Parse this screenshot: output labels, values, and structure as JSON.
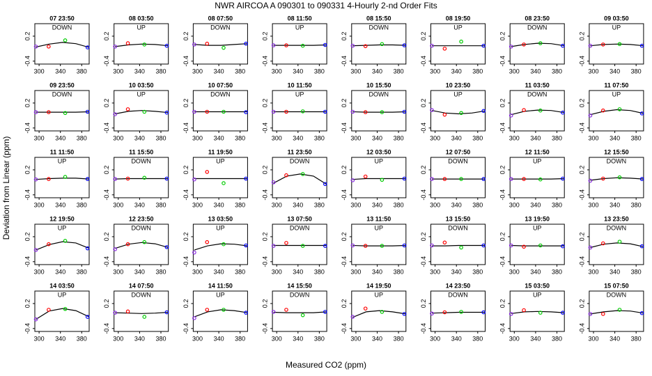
{
  "title": "NWR   AIRCOA A   090301 to 090331   4-Hourly 2-nd Order Fits",
  "xlabel": "Measured CO2 (ppm)",
  "ylabel": "Deviation from Linear (ppm)",
  "shared": {
    "x": [
      294,
      318,
      349,
      391
    ],
    "fit_x": [
      294,
      319,
      344,
      369,
      394
    ],
    "colors": [
      "#8a2be2",
      "#ff0000",
      "#00cc00",
      "#0000ff"
    ],
    "fit_color": "#000000",
    "xlim": [
      292,
      394
    ],
    "ylim": [
      -0.47,
      0.5
    ],
    "xticks": [
      300,
      340,
      380
    ],
    "yticks": [
      -0.4,
      0.2
    ]
  },
  "chart_data": [
    {
      "type": "scatter",
      "title": "07 23:50",
      "subtitle": "DOWN",
      "values": [
        -0.05,
        -0.05,
        0.1,
        -0.07
      ],
      "fit": [
        -0.06,
        0.01,
        0.05,
        0.02,
        -0.07
      ]
    },
    {
      "type": "scatter",
      "title": "08 03:50",
      "subtitle": "UP",
      "values": [
        -0.05,
        0.03,
        0,
        -0.03
      ],
      "fit": [
        -0.05,
        -0.01,
        0.01,
        0,
        -0.03
      ]
    },
    {
      "type": "scatter",
      "title": "08 07:50",
      "subtitle": "DOWN",
      "values": [
        0,
        0.02,
        -0.08,
        0.02
      ],
      "fit": [
        0,
        -0.02,
        -0.02,
        0,
        0.02
      ]
    },
    {
      "type": "scatter",
      "title": "08 11:50",
      "subtitle": "UP",
      "values": [
        -0.02,
        -0.02,
        -0.03,
        -0.01
      ],
      "fit": [
        -0.02,
        -0.02,
        -0.02,
        -0.02,
        -0.01
      ]
    },
    {
      "type": "scatter",
      "title": "08 15:50",
      "subtitle": "DOWN",
      "values": [
        -0.03,
        -0.04,
        0.01,
        -0.02
      ],
      "fit": [
        -0.03,
        -0.02,
        -0.01,
        -0.01,
        -0.02
      ]
    },
    {
      "type": "scatter",
      "title": "08 19:50",
      "subtitle": "UP",
      "values": [
        -0.03,
        -0.1,
        0.07,
        -0.03
      ],
      "fit": [
        -0.03,
        -0.03,
        -0.03,
        -0.03,
        -0.03
      ]
    },
    {
      "type": "scatter",
      "title": "08 23:50",
      "subtitle": "DOWN",
      "values": [
        -0.05,
        0,
        0.03,
        -0.03
      ],
      "fit": [
        -0.05,
        0,
        0.03,
        0.02,
        -0.03
      ]
    },
    {
      "type": "scatter",
      "title": "09 03:50",
      "subtitle": "UP",
      "values": [
        -0.03,
        0,
        0.01,
        -0.03
      ],
      "fit": [
        -0.03,
        0,
        0.01,
        0,
        -0.03
      ]
    },
    {
      "type": "scatter",
      "title": "09 23:50",
      "subtitle": "DOWN",
      "values": [
        -0.02,
        -0.02,
        -0.04,
        -0.01
      ],
      "fit": [
        -0.02,
        -0.02,
        -0.02,
        -0.02,
        -0.01
      ]
    },
    {
      "type": "scatter",
      "title": "10 03:50",
      "subtitle": "UP",
      "values": [
        -0.07,
        0.05,
        -0.01,
        -0.03
      ],
      "fit": [
        -0.06,
        0,
        0.02,
        0,
        -0.03
      ]
    },
    {
      "type": "scatter",
      "title": "10 07:50",
      "subtitle": "DOWN",
      "values": [
        -0.01,
        -0.01,
        -0.01,
        -0.02
      ],
      "fit": [
        -0.01,
        -0.01,
        -0.01,
        -0.01,
        -0.01
      ]
    },
    {
      "type": "scatter",
      "title": "10 11:50",
      "subtitle": "UP",
      "values": [
        -0.01,
        -0.01,
        0,
        -0.01
      ],
      "fit": [
        -0.01,
        -0.01,
        -0.01,
        -0.01,
        -0.01
      ]
    },
    {
      "type": "scatter",
      "title": "10 15:50",
      "subtitle": "DOWN",
      "values": [
        -0.01,
        -0.02,
        -0.02,
        -0.01
      ],
      "fit": [
        -0.01,
        -0.02,
        -0.02,
        -0.02,
        -0.01
      ]
    },
    {
      "type": "scatter",
      "title": "10 23:50",
      "subtitle": "UP",
      "values": [
        0.03,
        -0.08,
        -0.04,
        0.01
      ],
      "fit": [
        0.02,
        -0.04,
        -0.06,
        -0.04,
        0.01
      ]
    },
    {
      "type": "scatter",
      "title": "11 03:50",
      "subtitle": "DOWN",
      "values": [
        -0.1,
        0.03,
        0.02,
        -0.03
      ],
      "fit": [
        -0.08,
        0,
        0.03,
        0.02,
        -0.03
      ]
    },
    {
      "type": "scatter",
      "title": "11 07:50",
      "subtitle": "UP",
      "values": [
        -0.1,
        0.02,
        0.05,
        -0.05
      ],
      "fit": [
        -0.08,
        0,
        0.04,
        0.02,
        -0.05
      ]
    },
    {
      "type": "scatter",
      "title": "11 11:50",
      "subtitle": "UP",
      "values": [
        -0.03,
        -0.02,
        0.03,
        -0.02
      ],
      "fit": [
        -0.03,
        -0.01,
        0,
        0,
        -0.02
      ]
    },
    {
      "type": "scatter",
      "title": "11 15:50",
      "subtitle": "DOWN",
      "values": [
        -0.02,
        -0.01,
        0.01,
        -0.01
      ],
      "fit": [
        -0.02,
        -0.01,
        -0.01,
        -0.01,
        -0.01
      ]
    },
    {
      "type": "scatter",
      "title": "11 19:50",
      "subtitle": "UP",
      "values": [
        -0.03,
        0.15,
        -0.12,
        -0.01
      ],
      "fit": [
        -0.01,
        -0.01,
        -0.01,
        -0.01,
        -0.01
      ]
    },
    {
      "type": "scatter",
      "title": "11 23:50",
      "subtitle": "DOWN",
      "values": [
        -0.1,
        0.07,
        0.1,
        -0.14
      ],
      "fit": [
        -0.12,
        0.05,
        0.1,
        0.05,
        -0.15
      ]
    },
    {
      "type": "scatter",
      "title": "12 03:50",
      "subtitle": "UP",
      "values": [
        -0.05,
        0.04,
        -0.04,
        -0.01
      ],
      "fit": [
        -0.03,
        -0.01,
        -0.01,
        -0.01,
        -0.01
      ]
    },
    {
      "type": "scatter",
      "title": "12 07:50",
      "subtitle": "DOWN",
      "values": [
        -0.02,
        -0.02,
        -0.02,
        -0.02
      ],
      "fit": [
        -0.02,
        -0.02,
        -0.02,
        -0.02,
        -0.02
      ]
    },
    {
      "type": "scatter",
      "title": "12 11:50",
      "subtitle": "UP",
      "values": [
        -0.02,
        -0.02,
        -0.03,
        -0.01
      ],
      "fit": [
        -0.02,
        -0.02,
        -0.02,
        -0.02,
        -0.01
      ]
    },
    {
      "type": "scatter",
      "title": "12 15:50",
      "subtitle": "DOWN",
      "values": [
        -0.06,
        -0.01,
        0.02,
        -0.02
      ],
      "fit": [
        -0.05,
        -0.01,
        0.01,
        0,
        -0.02
      ]
    },
    {
      "type": "scatter",
      "title": "12 19:50",
      "subtitle": "UP",
      "values": [
        -0.12,
        0.02,
        0.1,
        -0.08
      ],
      "fit": [
        -0.12,
        0.01,
        0.08,
        0.05,
        -0.08
      ]
    },
    {
      "type": "scatter",
      "title": "12 23:50",
      "subtitle": "DOWN",
      "values": [
        -0.1,
        0.02,
        0.07,
        -0.05
      ],
      "fit": [
        -0.08,
        0.02,
        0.06,
        0.03,
        -0.06
      ]
    },
    {
      "type": "scatter",
      "title": "13 03:50",
      "subtitle": "UP",
      "values": [
        -0.18,
        0.07,
        0.02,
        -0.01
      ],
      "fit": [
        -0.12,
        -0.02,
        0.03,
        0.02,
        -0.02
      ]
    },
    {
      "type": "scatter",
      "title": "13 07:50",
      "subtitle": "DOWN",
      "values": [
        -0.02,
        0.05,
        -0.02,
        -0.02
      ],
      "fit": [
        -0.01,
        -0.01,
        -0.01,
        -0.01,
        -0.01
      ]
    },
    {
      "type": "scatter",
      "title": "13 11:50",
      "subtitle": "UP",
      "values": [
        -0.01,
        -0.02,
        -0.02,
        -0.01
      ],
      "fit": [
        -0.01,
        -0.02,
        -0.02,
        -0.02,
        -0.01
      ]
    },
    {
      "type": "scatter",
      "title": "13 15:50",
      "subtitle": "DOWN",
      "values": [
        -0.01,
        0.06,
        -0.06,
        -0.01
      ],
      "fit": [
        -0.02,
        -0.02,
        -0.01,
        -0.01,
        -0.01
      ]
    },
    {
      "type": "scatter",
      "title": "13 19:50",
      "subtitle": "UP",
      "values": [
        -0.01,
        -0.04,
        -0.01,
        -0.03
      ],
      "fit": [
        -0.01,
        -0.02,
        -0.02,
        -0.02,
        -0.02
      ]
    },
    {
      "type": "scatter",
      "title": "13 23:50",
      "subtitle": "DOWN",
      "values": [
        -0.06,
        0.04,
        0.08,
        -0.03
      ],
      "fit": [
        -0.06,
        0.02,
        0.05,
        0.03,
        -0.04
      ]
    },
    {
      "type": "scatter",
      "title": "14 03:50",
      "subtitle": "UP",
      "values": [
        -0.18,
        0.05,
        0.07,
        -0.12
      ],
      "fit": [
        -0.18,
        0.02,
        0.08,
        0.03,
        -0.12
      ]
    },
    {
      "type": "scatter",
      "title": "14 07:50",
      "subtitle": "DOWN",
      "values": [
        -0.02,
        0.01,
        -0.12,
        -0.01
      ],
      "fit": [
        -0.02,
        -0.03,
        -0.04,
        -0.03,
        -0.01
      ]
    },
    {
      "type": "scatter",
      "title": "14 11:50",
      "subtitle": "UP",
      "values": [
        -0.15,
        0.05,
        0.05,
        -0.02
      ],
      "fit": [
        -0.12,
        0,
        0.05,
        0.03,
        -0.02
      ]
    },
    {
      "type": "scatter",
      "title": "14 15:50",
      "subtitle": "DOWN",
      "values": [
        0,
        0.05,
        -0.08,
        0
      ],
      "fit": [
        -0.01,
        -0.02,
        -0.02,
        -0.02,
        0
      ]
    },
    {
      "type": "scatter",
      "title": "14 19:50",
      "subtitle": "UP",
      "values": [
        -0.12,
        0.08,
        0,
        -0.05
      ],
      "fit": [
        -0.13,
        0,
        0.03,
        0,
        -0.05
      ]
    },
    {
      "type": "scatter",
      "title": "14 23:50",
      "subtitle": "DOWN",
      "values": [
        -0.04,
        -0.01,
        0,
        -0.01
      ],
      "fit": [
        -0.03,
        -0.02,
        -0.01,
        -0.01,
        -0.01
      ]
    },
    {
      "type": "scatter",
      "title": "15 03:50",
      "subtitle": "UP",
      "values": [
        -0.05,
        0.04,
        -0.02,
        -0.02
      ],
      "fit": [
        -0.04,
        0,
        0.01,
        0,
        -0.02
      ]
    },
    {
      "type": "scatter",
      "title": "15 07:50",
      "subtitle": "DOWN",
      "values": [
        -0.05,
        -0.05,
        0.05,
        -0.03
      ],
      "fit": [
        -0.05,
        0,
        0.03,
        0.02,
        -0.03
      ]
    }
  ]
}
